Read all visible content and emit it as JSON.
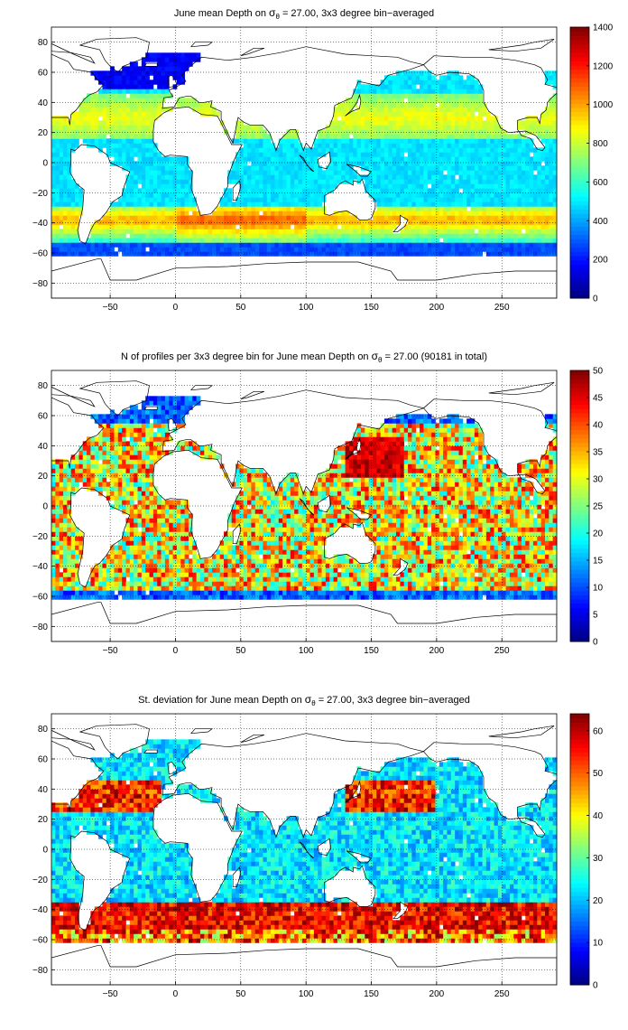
{
  "chart_data": [
    {
      "type": "heatmap",
      "title_pre": "June mean Depth on ",
      "title_symbol": "σ",
      "title_sub": "θ",
      "title_post": " = 27.00, 3x3 degree bin−averaged",
      "xlim": [
        -95,
        292
      ],
      "ylim": [
        -90,
        90
      ],
      "xticks": [
        -50,
        0,
        50,
        100,
        150,
        200,
        250
      ],
      "yticks": [
        -80,
        -60,
        -40,
        -20,
        0,
        20,
        40,
        60,
        80
      ],
      "grid": "dotted",
      "colorbar": {
        "min": 0,
        "max": 1400,
        "ticks": [
          0,
          200,
          400,
          600,
          800,
          1000,
          1200,
          1400
        ]
      },
      "field": "depth"
    },
    {
      "type": "heatmap",
      "title_pre": "N of profiles per 3x3 degree bin for June mean Depth on ",
      "title_symbol": "σ",
      "title_sub": "θ",
      "title_post": " = 27.00 (90181 in total)",
      "xlim": [
        -95,
        292
      ],
      "ylim": [
        -90,
        90
      ],
      "xticks": [
        -50,
        0,
        50,
        100,
        150,
        200,
        250
      ],
      "yticks": [
        -80,
        -60,
        -40,
        -20,
        0,
        20,
        40,
        60,
        80
      ],
      "grid": "dotted",
      "colorbar": {
        "min": 0,
        "max": 50,
        "ticks": [
          0,
          5,
          10,
          15,
          20,
          25,
          30,
          35,
          40,
          45,
          50
        ]
      },
      "field": "count"
    },
    {
      "type": "heatmap",
      "title_pre": "St. deviation for June mean Depth on ",
      "title_symbol": "σ",
      "title_sub": "θ",
      "title_post": " = 27.00, 3x3 degree bin−averaged",
      "xlim": [
        -95,
        292
      ],
      "ylim": [
        -90,
        90
      ],
      "xticks": [
        -50,
        0,
        50,
        100,
        150,
        200,
        250
      ],
      "yticks": [
        -80,
        -60,
        -40,
        -20,
        0,
        20,
        40,
        60,
        80
      ],
      "grid": "dotted",
      "colorbar": {
        "min": 0,
        "max": 64,
        "ticks": [
          0,
          10,
          20,
          30,
          40,
          50,
          60
        ]
      },
      "field": "std"
    }
  ]
}
